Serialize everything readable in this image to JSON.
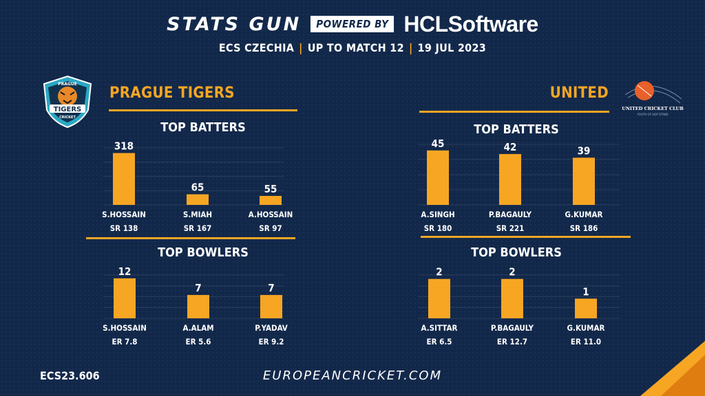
{
  "header": {
    "brand": "STATS GUN",
    "powered_by": "POWERED BY",
    "sponsor": "HCLSoftware",
    "competition": "ECS CZECHIA",
    "range": "UP TO MATCH 12",
    "date": "19 JUL 2023"
  },
  "teams": [
    {
      "name": "PRAGUE TIGERS",
      "logo_text": {
        "top": "PRAGUE",
        "middle": "TIGERS",
        "bottom": "CRICKET"
      },
      "batters_title": "TOP BATTERS",
      "bowlers_title": "TOP BOWLERS"
    },
    {
      "name": "UNITED",
      "logo_text": {
        "main": "UNITED CRICKET CLUB",
        "sub": "YOUTH OF HOP STAND"
      },
      "batters_title": "TOP BATTERS",
      "bowlers_title": "TOP BOWLERS"
    }
  ],
  "footer": {
    "code": "ECS23.606",
    "site": "EUROPEANCRICKET.COM"
  },
  "colors": {
    "accent": "#f7a623",
    "background": "#12284a"
  },
  "chart_data": [
    {
      "type": "bar",
      "team": "PRAGUE TIGERS",
      "title": "TOP BATTERS",
      "categories": [
        "S.HOSSAIN",
        "S.MIAH",
        "A.HOSSAIN"
      ],
      "values": [
        318,
        65,
        55
      ],
      "sublabels": [
        "SR 138",
        "SR 167",
        "SR 97"
      ],
      "ylim": [
        0,
        350
      ]
    },
    {
      "type": "bar",
      "team": "UNITED",
      "title": "TOP BATTERS",
      "categories": [
        "A.SINGH",
        "P.BAGAULY",
        "G.KUMAR"
      ],
      "values": [
        45,
        42,
        39
      ],
      "sublabels": [
        "SR 180",
        "SR 221",
        "SR 186"
      ],
      "ylim": [
        0,
        50
      ]
    },
    {
      "type": "bar",
      "team": "PRAGUE TIGERS",
      "title": "TOP BOWLERS",
      "categories": [
        "S.HOSSAIN",
        "A.ALAM",
        "P.YADAV"
      ],
      "values": [
        12,
        7,
        7
      ],
      "sublabels": [
        "ER 7.8",
        "ER 5.6",
        "ER 9.2"
      ],
      "ylim": [
        0,
        13
      ]
    },
    {
      "type": "bar",
      "team": "UNITED",
      "title": "TOP BOWLERS",
      "categories": [
        "A.SITTAR",
        "P.BAGAULY",
        "G.KUMAR"
      ],
      "values": [
        2,
        2,
        1
      ],
      "sublabels": [
        "ER 6.5",
        "ER 12.7",
        "ER 11.0"
      ],
      "ylim": [
        0,
        2.2
      ]
    }
  ]
}
